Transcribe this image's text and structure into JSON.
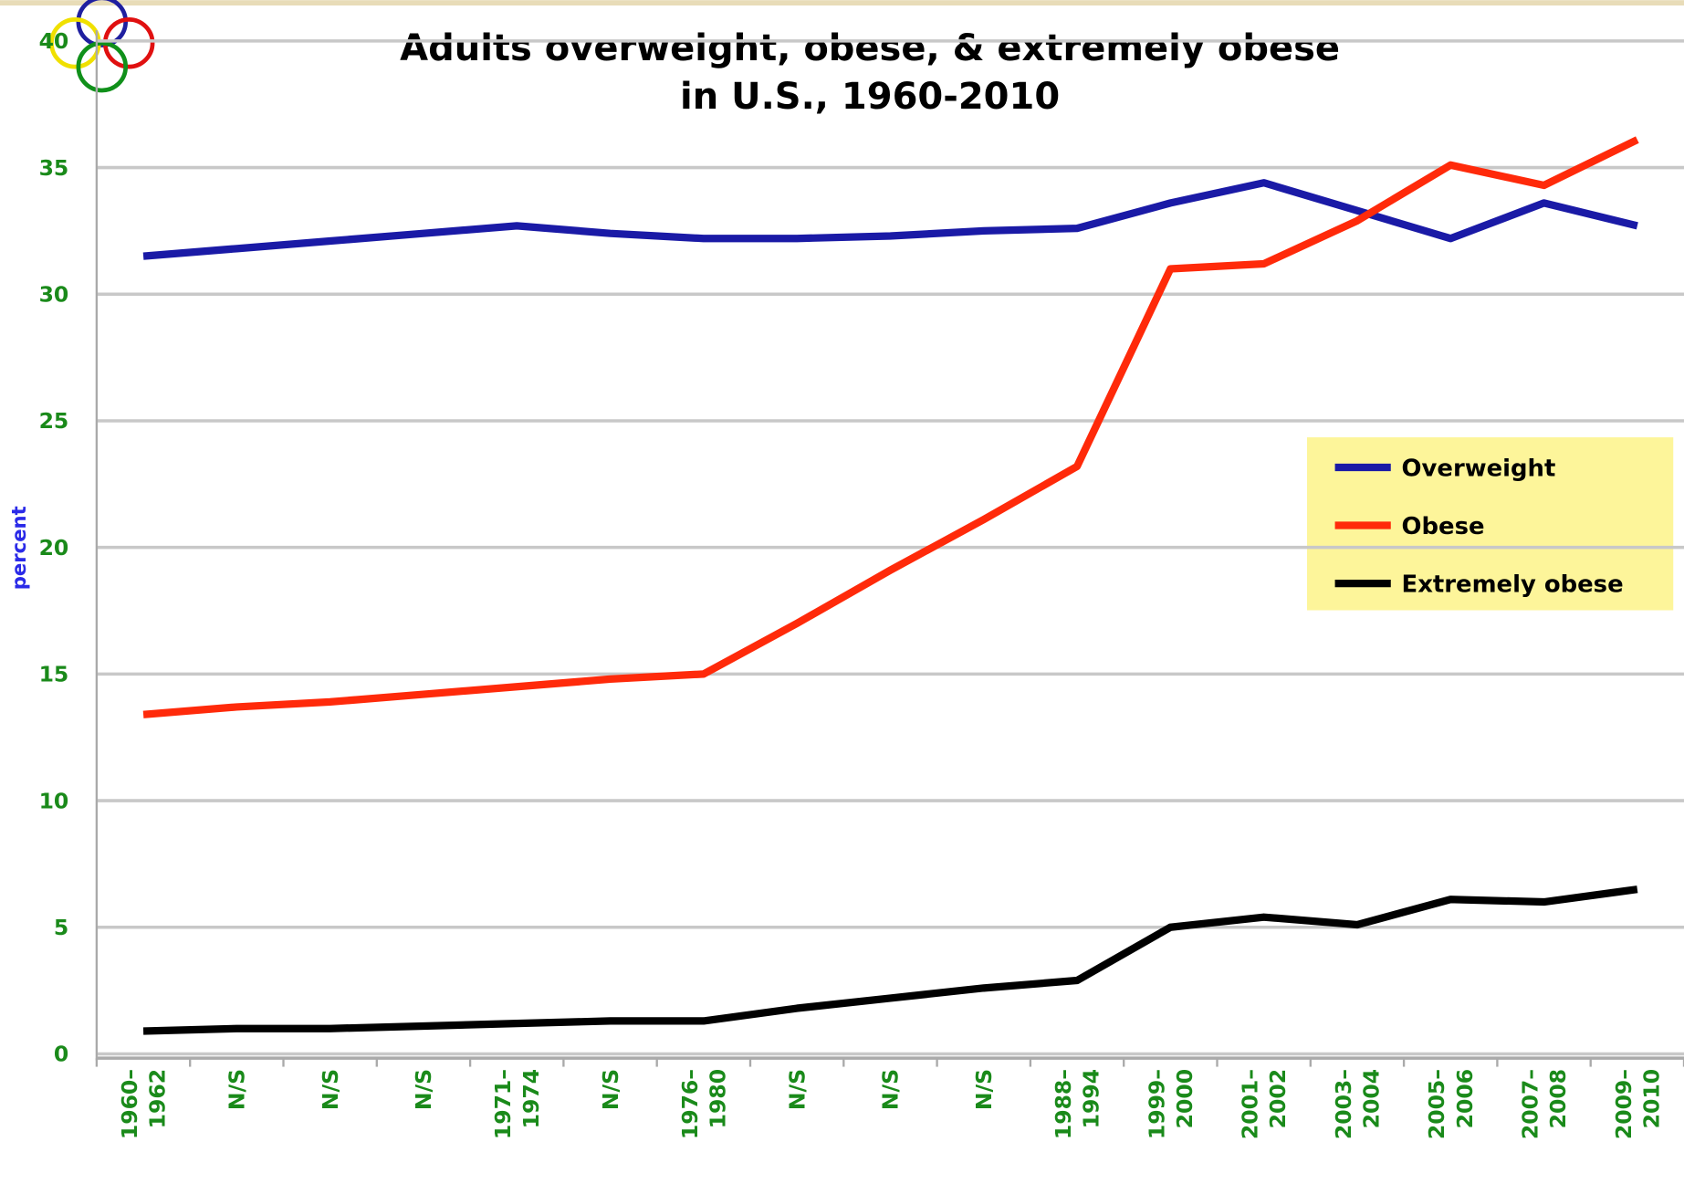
{
  "chart_data": {
    "type": "line",
    "title": [
      "Adults overweight, obese, & extremely obese",
      "in U.S., 1960-2010"
    ],
    "ylabel": "percent",
    "categories": [
      "1960–1962",
      "N/S",
      "N/S",
      "N/S",
      "1971–1974",
      "N/S",
      "1976–1980",
      "N/S",
      "N/S",
      "N/S",
      "1988–1994",
      "1999–2000",
      "2001–2002",
      "2003–2004",
      "2005–2006",
      "2007–2008",
      "2009–2010"
    ],
    "series": [
      {
        "name": "Overweight",
        "color": "#1a1aa6",
        "values": [
          31.5,
          31.8,
          32.1,
          32.4,
          32.7,
          32.4,
          32.2,
          32.2,
          32.3,
          32.5,
          32.6,
          33.6,
          34.4,
          33.3,
          32.2,
          33.6,
          32.7
        ]
      },
      {
        "name": "Obese",
        "color": "#ff2a0a",
        "values": [
          13.4,
          13.7,
          13.9,
          14.2,
          14.5,
          14.8,
          15.0,
          17.0,
          19.1,
          21.1,
          23.2,
          31.0,
          31.2,
          32.9,
          35.1,
          34.3,
          36.1
        ]
      },
      {
        "name": "Extremely obese",
        "color": "#000000",
        "values": [
          0.9,
          1.0,
          1.0,
          1.1,
          1.2,
          1.3,
          1.3,
          1.8,
          2.2,
          2.6,
          2.9,
          5.0,
          5.4,
          5.1,
          6.1,
          6.0,
          6.5
        ]
      }
    ],
    "ylim": [
      0,
      40
    ],
    "yticks": [
      0,
      5,
      10,
      15,
      20,
      25,
      30,
      35,
      40
    ],
    "grid": true,
    "legend": "right"
  }
}
